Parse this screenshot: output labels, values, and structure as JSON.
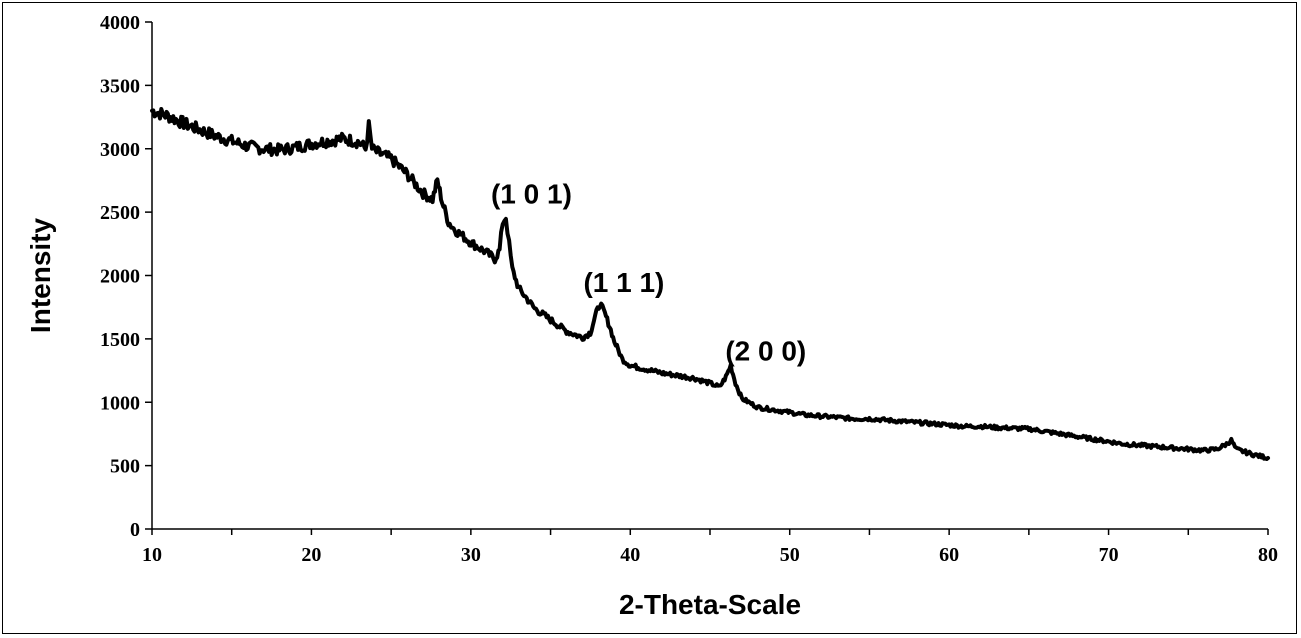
{
  "chart_data": {
    "type": "line",
    "title": "",
    "xlabel": "2-Theta-Scale",
    "ylabel": "Intensity",
    "xlim": [
      10,
      80
    ],
    "ylim": [
      0,
      4000
    ],
    "x_ticks": [
      10,
      20,
      30,
      40,
      50,
      60,
      70,
      80
    ],
    "y_ticks": [
      0,
      500,
      1000,
      1500,
      2000,
      2500,
      3000,
      3500,
      4000
    ],
    "x_tick_labels": [
      "10",
      "20",
      "30",
      "40",
      "50",
      "60",
      "70",
      "80"
    ],
    "y_tick_labels": [
      "0",
      "500",
      "1000",
      "1500",
      "2000",
      "2500",
      "3000",
      "3500",
      "4000"
    ],
    "grid": false,
    "legend": "none",
    "line_color": "#000000",
    "series": [
      {
        "x": [
          10,
          11,
          12,
          13,
          14,
          15,
          16,
          17,
          18,
          19,
          20,
          21,
          22,
          23,
          23.4,
          23.6,
          23.8,
          24,
          25,
          26,
          27,
          27.6,
          27.9,
          28.2,
          28.6,
          29,
          30,
          31,
          31.5,
          31.8,
          32.0,
          32.2,
          32.4,
          32.6,
          33,
          34,
          35,
          36,
          37,
          37.5,
          37.8,
          38.1,
          38.4,
          38.7,
          39,
          39.5,
          40,
          41,
          42,
          43,
          44,
          45,
          45.6,
          46.0,
          46.3,
          46.6,
          47,
          48,
          49,
          50,
          51,
          52,
          53,
          54,
          55,
          56,
          57,
          58,
          59,
          60,
          61,
          62,
          63,
          64,
          65,
          66,
          67,
          68,
          69,
          70,
          71,
          72,
          73,
          74,
          75,
          76,
          76.8,
          77.4,
          77.7,
          78,
          79,
          80
        ],
        "y": [
          3300,
          3260,
          3200,
          3150,
          3100,
          3060,
          3020,
          3000,
          2990,
          3010,
          3040,
          3060,
          3080,
          3050,
          3000,
          3180,
          3000,
          2980,
          2920,
          2800,
          2650,
          2600,
          2750,
          2580,
          2420,
          2360,
          2260,
          2180,
          2130,
          2200,
          2420,
          2460,
          2250,
          2050,
          1900,
          1740,
          1650,
          1560,
          1510,
          1550,
          1680,
          1780,
          1700,
          1600,
          1480,
          1340,
          1290,
          1260,
          1230,
          1210,
          1190,
          1150,
          1120,
          1200,
          1290,
          1150,
          1030,
          960,
          940,
          920,
          900,
          890,
          880,
          870,
          870,
          860,
          850,
          840,
          830,
          820,
          810,
          810,
          800,
          795,
          790,
          770,
          750,
          730,
          710,
          690,
          670,
          660,
          650,
          640,
          630,
          620,
          630,
          670,
          700,
          630,
          590,
          560
        ]
      }
    ],
    "annotations": [
      {
        "text": "(1 0 1)",
        "x": 33.8,
        "y": 2570
      },
      {
        "text": "(1 1 1)",
        "x": 39.6,
        "y": 1870
      },
      {
        "text": "(2 0 0)",
        "x": 48.5,
        "y": 1330
      }
    ]
  }
}
